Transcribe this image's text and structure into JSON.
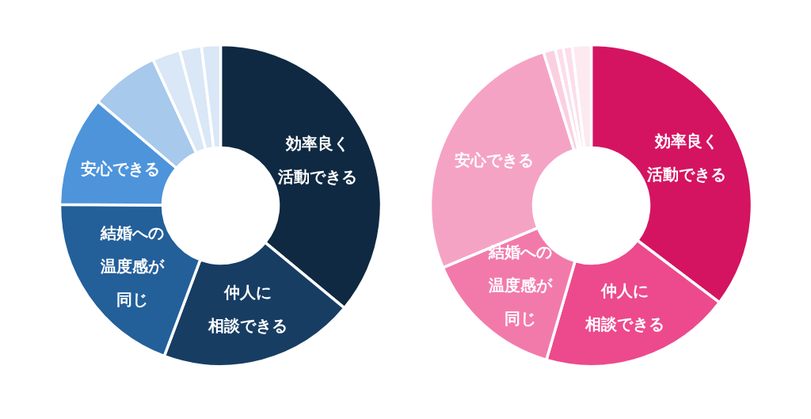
{
  "chart_data": [
    {
      "type": "donut",
      "categories": [
        "効率良く活動できる",
        "仲人に相談できる",
        "結婚への温度感が同じ",
        "安心できる",
        null,
        null,
        null,
        null
      ],
      "values": [
        36.0,
        19.7,
        19.4,
        11.1,
        6.9,
        2.8,
        2.2,
        1.9
      ],
      "colors": [
        "#0f2942",
        "#173d63",
        "#235f99",
        "#4d94db",
        "#a6c9ec",
        "#d9e7f6",
        "#d9e7f6",
        "#d9e7f6"
      ]
    },
    {
      "type": "donut",
      "categories": [
        "効率良く活動できる",
        "仲人に相談できる",
        "結婚への温度感が同じ",
        "安心できる",
        null,
        null,
        null,
        null
      ],
      "values": [
        35.3,
        19.2,
        14.2,
        26.5,
        1.2,
        0.8,
        0.9,
        1.9
      ],
      "colors": [
        "#d41461",
        "#ec4a8c",
        "#f27aab",
        "#f5a3c5",
        "#fad0e0",
        "#fcdde9",
        "#fcdde9",
        "#fde9f0"
      ]
    }
  ]
}
